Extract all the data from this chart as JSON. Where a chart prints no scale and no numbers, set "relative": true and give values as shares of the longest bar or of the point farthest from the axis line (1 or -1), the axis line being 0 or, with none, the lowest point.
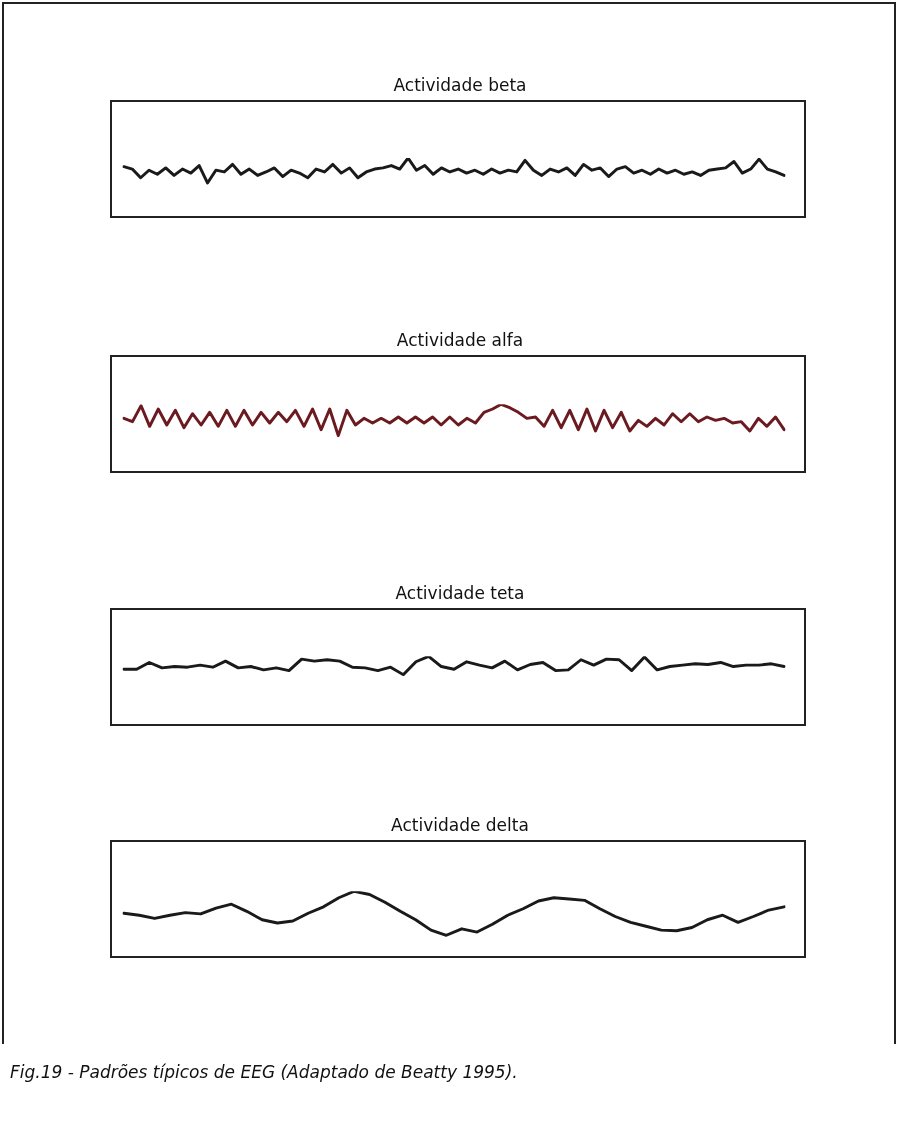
{
  "chart_data": [
    {
      "type": "line",
      "title": "Actividade beta",
      "relative": true,
      "marker": "none",
      "line_style": "solid",
      "categories": [
        null,
        null,
        null,
        null,
        null,
        null,
        null,
        null,
        null,
        null,
        null,
        null,
        null,
        null,
        null,
        null,
        null,
        null,
        null,
        null,
        null,
        null,
        null,
        null,
        null,
        null,
        null,
        null,
        null,
        null,
        null,
        null,
        null,
        null,
        null,
        null,
        null,
        null,
        null,
        null,
        null,
        null,
        null,
        null,
        null,
        null,
        null,
        null,
        null,
        null,
        null,
        null,
        null,
        null,
        null,
        null,
        null,
        null,
        null,
        null,
        null,
        null,
        null,
        null,
        null,
        null,
        null,
        null,
        null,
        null,
        null,
        null,
        null,
        null,
        null,
        null,
        null,
        null,
        null,
        null
      ],
      "series": [
        {
          "color": "#1a1a1a",
          "values": [
            0.85,
            0.81,
            0.66,
            0.79,
            0.72,
            0.83,
            0.7,
            0.81,
            0.74,
            0.87,
            0.57,
            0.79,
            0.76,
            0.89,
            0.72,
            0.81,
            0.7,
            0.76,
            0.83,
            0.68,
            0.79,
            0.74,
            0.66,
            0.81,
            0.76,
            0.89,
            0.74,
            0.83,
            0.66,
            0.76,
            0.81,
            0.83,
            0.87,
            0.81,
            1.0,
            0.79,
            0.87,
            0.72,
            0.83,
            0.76,
            0.81,
            0.74,
            0.79,
            0.72,
            0.81,
            0.74,
            0.79,
            0.76,
            0.96,
            0.79,
            0.7,
            0.81,
            0.76,
            0.83,
            0.7,
            0.89,
            0.79,
            0.83,
            0.68,
            0.81,
            0.85,
            0.74,
            0.79,
            0.72,
            0.81,
            0.74,
            0.79,
            0.72,
            0.76,
            0.7,
            0.79,
            0.81,
            0.83,
            0.94,
            0.74,
            0.81,
            0.98,
            0.81,
            0.76,
            0.7
          ]
        }
      ]
    },
    {
      "type": "line",
      "title": "Actividade alfa",
      "relative": true,
      "marker": "none",
      "line_style": "solid",
      "categories": [
        null,
        null,
        null,
        null,
        null,
        null,
        null,
        null,
        null,
        null,
        null,
        null,
        null,
        null,
        null,
        null,
        null,
        null,
        null,
        null,
        null,
        null,
        null,
        null,
        null,
        null,
        null,
        null,
        null,
        null,
        null,
        null,
        null,
        null,
        null,
        null,
        null,
        null,
        null,
        null,
        null,
        null,
        null,
        null,
        null,
        null,
        null,
        null,
        null,
        null,
        null,
        null,
        null,
        null,
        null,
        null,
        null,
        null,
        null,
        null,
        null,
        null,
        null,
        null,
        null,
        null,
        null,
        null,
        null,
        null,
        null,
        null,
        null,
        null,
        null,
        null,
        null,
        null
      ],
      "series": [
        {
          "color": "#6b1a1f",
          "values": [
            0.79,
            0.74,
            0.98,
            0.67,
            0.93,
            0.69,
            0.91,
            0.65,
            0.86,
            0.69,
            0.88,
            0.67,
            0.91,
            0.67,
            0.91,
            0.69,
            0.88,
            0.72,
            0.88,
            0.74,
            0.91,
            0.67,
            0.93,
            0.62,
            0.93,
            0.53,
            0.91,
            0.69,
            0.79,
            0.72,
            0.79,
            0.72,
            0.81,
            0.72,
            0.81,
            0.72,
            0.81,
            0.69,
            0.81,
            0.69,
            0.79,
            0.72,
            0.88,
            0.93,
            1.0,
            0.95,
            0.88,
            0.79,
            0.81,
            0.67,
            0.91,
            0.65,
            0.91,
            0.62,
            0.93,
            0.6,
            0.91,
            0.65,
            0.88,
            0.6,
            0.76,
            0.67,
            0.79,
            0.69,
            0.86,
            0.74,
            0.86,
            0.74,
            0.81,
            0.76,
            0.79,
            0.72,
            0.74,
            0.6,
            0.79,
            0.67,
            0.81,
            0.62
          ]
        }
      ]
    },
    {
      "type": "line",
      "title": "Actividade teta",
      "relative": true,
      "marker": "none",
      "line_style": "solid",
      "categories": [
        null,
        null,
        null,
        null,
        null,
        null,
        null,
        null,
        null,
        null,
        null,
        null,
        null,
        null,
        null,
        null,
        null,
        null,
        null,
        null,
        null,
        null,
        null,
        null,
        null,
        null,
        null,
        null,
        null,
        null,
        null,
        null,
        null,
        null,
        null,
        null,
        null,
        null,
        null,
        null,
        null,
        null,
        null,
        null,
        null,
        null,
        null,
        null,
        null,
        null,
        null,
        null,
        null
      ],
      "series": [
        {
          "color": "#1a1a1a",
          "values": [
            0.81,
            0.81,
            0.91,
            0.83,
            0.85,
            0.84,
            0.87,
            0.84,
            0.93,
            0.83,
            0.85,
            0.8,
            0.83,
            0.79,
            0.96,
            0.93,
            0.95,
            0.93,
            0.84,
            0.83,
            0.79,
            0.84,
            0.73,
            0.92,
            1.0,
            0.85,
            0.81,
            0.92,
            0.87,
            0.83,
            0.93,
            0.8,
            0.88,
            0.91,
            0.79,
            0.8,
            0.95,
            0.87,
            0.96,
            0.95,
            0.79,
            0.99,
            0.8,
            0.85,
            0.87,
            0.89,
            0.88,
            0.91,
            0.85,
            0.87,
            0.87,
            0.89,
            0.85
          ]
        }
      ]
    },
    {
      "type": "line",
      "title": "Actividade delta",
      "relative": true,
      "marker": "none",
      "line_style": "solid",
      "annotations": [
        "Fig.19 - Padrões típicos de EEG (Adaptado de Beatty 1995)."
      ],
      "categories": [
        null,
        null,
        null,
        null,
        null,
        null,
        null,
        null,
        null,
        null,
        null,
        null,
        null,
        null,
        null,
        null,
        null,
        null,
        null,
        null,
        null,
        null,
        null,
        null,
        null,
        null,
        null,
        null,
        null,
        null,
        null,
        null,
        null,
        null,
        null,
        null,
        null,
        null,
        null,
        null,
        null,
        null,
        null,
        null
      ],
      "series": [
        {
          "color": "#1a1a1a",
          "values": [
            0.66,
            0.63,
            0.58,
            0.63,
            0.67,
            0.65,
            0.74,
            0.8,
            0.69,
            0.56,
            0.51,
            0.54,
            0.66,
            0.76,
            0.9,
            1.0,
            0.95,
            0.83,
            0.69,
            0.56,
            0.4,
            0.32,
            0.42,
            0.37,
            0.49,
            0.63,
            0.73,
            0.85,
            0.9,
            0.88,
            0.86,
            0.73,
            0.61,
            0.52,
            0.46,
            0.4,
            0.39,
            0.44,
            0.56,
            0.63,
            0.52,
            0.61,
            0.71,
            0.76
          ]
        }
      ]
    }
  ]
}
